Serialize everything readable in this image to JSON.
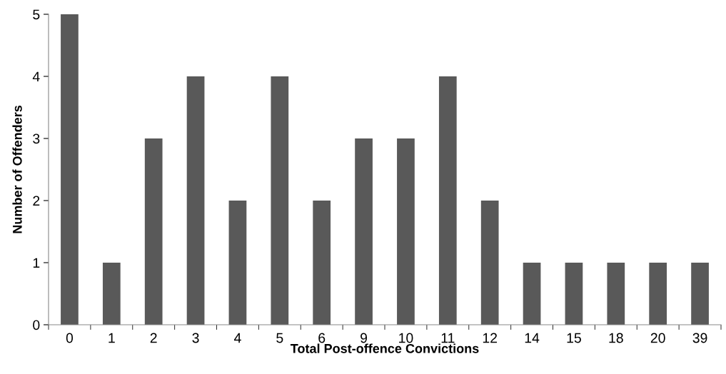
{
  "chart_data": {
    "type": "bar",
    "xlabel": "Total Post-offence Convictions",
    "ylabel": "Number of Offenders",
    "categories": [
      "0",
      "1",
      "2",
      "3",
      "4",
      "5",
      "6",
      "9",
      "10",
      "11",
      "12",
      "14",
      "15",
      "18",
      "20",
      "39"
    ],
    "values": [
      5,
      1,
      3,
      4,
      2,
      4,
      2,
      3,
      3,
      4,
      2,
      1,
      1,
      1,
      1,
      1
    ],
    "color": "#595959",
    "ylim": [
      0,
      5
    ],
    "yticks": [
      0,
      1,
      2,
      3,
      4,
      5
    ],
    "grid": false,
    "legend": false
  }
}
